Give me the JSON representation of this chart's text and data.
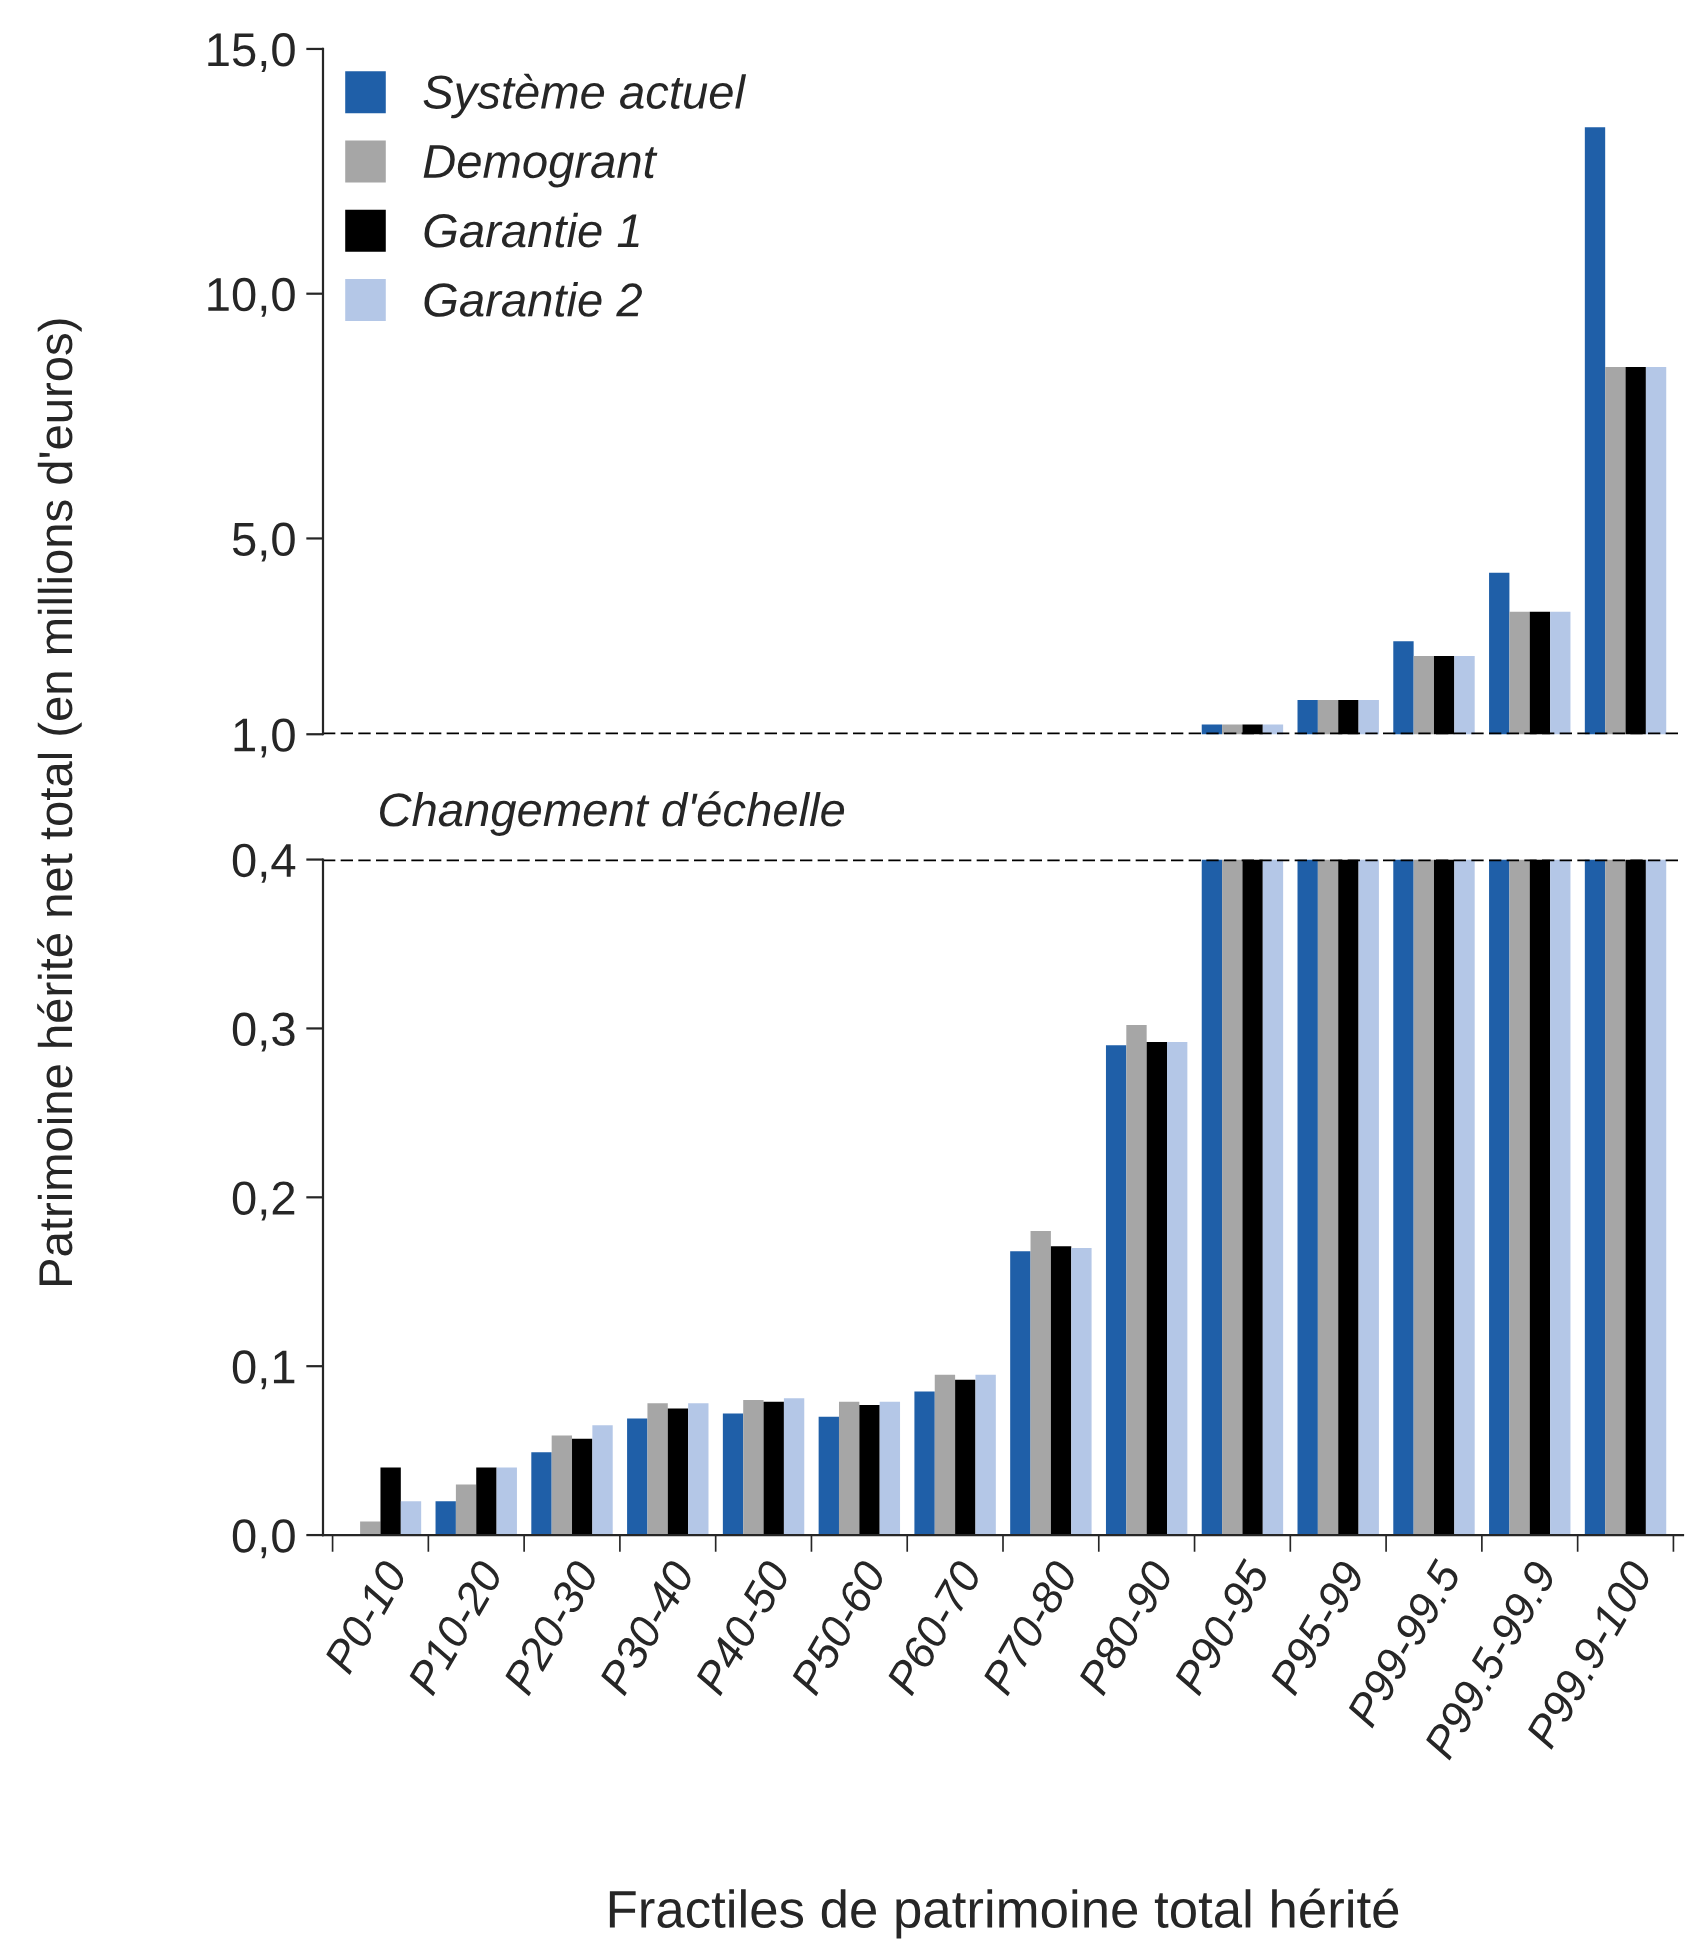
{
  "chart_data": [
    {
      "type": "bar",
      "ylabel": "Patrimoine hérité net total (en millions d'euros)",
      "categories": [
        null,
        null,
        null,
        null,
        null,
        null,
        null,
        null,
        null,
        null,
        null,
        null,
        null,
        null
      ],
      "series": [
        {
          "name": "Système actuel",
          "color": "#1f5fa8",
          "values": [
            null,
            null,
            null,
            null,
            null,
            null,
            null,
            null,
            null,
            1.2,
            1.7,
            2.9,
            4.3,
            13.4
          ]
        },
        {
          "name": "Demogrant",
          "color": "#a6a6a6",
          "values": [
            null,
            null,
            null,
            null,
            null,
            null,
            null,
            null,
            null,
            1.2,
            1.7,
            2.6,
            3.5,
            8.5
          ]
        },
        {
          "name": "Garantie 1",
          "color": "#000000",
          "values": [
            null,
            null,
            null,
            null,
            null,
            null,
            null,
            null,
            null,
            1.2,
            1.7,
            2.6,
            3.5,
            8.5
          ]
        },
        {
          "name": "Garantie 2",
          "color": "#b4c7e7",
          "values": [
            null,
            null,
            null,
            null,
            null,
            null,
            null,
            null,
            null,
            1.2,
            1.7,
            2.6,
            3.5,
            8.5
          ]
        }
      ],
      "ylim": [
        1,
        15
      ],
      "yticks": [
        {
          "value": 1,
          "label": "1,0"
        },
        {
          "value": 5,
          "label": "5,0"
        },
        {
          "value": 10,
          "label": "10,0"
        },
        {
          "value": 15,
          "label": "15,0"
        }
      ],
      "tick_labels": "y",
      "legend": "top left",
      "grid": false,
      "ref_lines": [
        {
          "axis": "y",
          "value": 1,
          "color": "#000000",
          "line_style": "dashed"
        }
      ]
    },
    {
      "type": "bar",
      "xlabel": "Fractiles de patrimoine total hérité",
      "annotations": [
        "Changement d'échelle"
      ],
      "categories": [
        "P0-10",
        "P10-20",
        "P20-30",
        "P30-40",
        "P40-50",
        "P50-60",
        "P60-70",
        "P70-80",
        "P80-90",
        "P90-95",
        "P95-99",
        "P99-99.5",
        "P99.5-99.9",
        "P99.9-100"
      ],
      "series": [
        {
          "color": "#1f5fa8",
          "values": [
            0.0,
            0.02,
            0.049,
            0.069,
            0.072,
            0.07,
            0.085,
            0.168,
            0.29,
            0.4,
            0.4,
            0.4,
            0.4,
            0.4
          ]
        },
        {
          "color": "#a6a6a6",
          "values": [
            0.008,
            0.03,
            0.059,
            0.078,
            0.08,
            0.079,
            0.095,
            0.18,
            0.302,
            0.4,
            0.4,
            0.4,
            0.4,
            0.4
          ]
        },
        {
          "color": "#000000",
          "values": [
            0.04,
            0.04,
            0.057,
            0.075,
            0.079,
            0.077,
            0.092,
            0.171,
            0.292,
            0.4,
            0.4,
            0.4,
            0.4,
            0.4
          ]
        },
        {
          "color": "#b4c7e7",
          "values": [
            0.02,
            0.04,
            0.065,
            0.078,
            0.081,
            0.079,
            0.095,
            0.17,
            0.292,
            0.4,
            0.4,
            0.4,
            0.4,
            0.4
          ]
        }
      ],
      "ylim": [
        0,
        0.4
      ],
      "yticks": [
        {
          "value": 0,
          "label": "0,0"
        },
        {
          "value": 0.1,
          "label": "0,1"
        },
        {
          "value": 0.2,
          "label": "0,2"
        },
        {
          "value": 0.3,
          "label": "0,3"
        },
        {
          "value": 0.4,
          "label": "0,4"
        }
      ],
      "grid": false,
      "ref_lines": [
        {
          "axis": "y",
          "value": 0.4,
          "color": "#000000",
          "line_style": "dashed"
        }
      ]
    }
  ]
}
